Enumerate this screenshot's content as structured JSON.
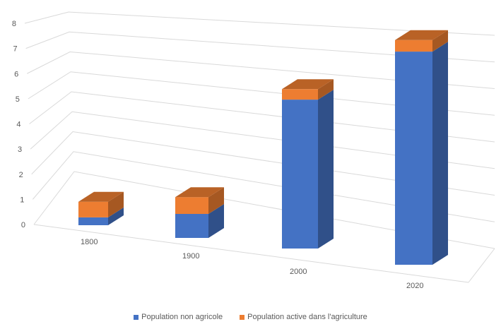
{
  "chart_data": {
    "type": "bar",
    "stacked": true,
    "three_d": true,
    "title": "",
    "xlabel": "",
    "ylabel": "",
    "categories": [
      "1800",
      "1900",
      "2000",
      "2020"
    ],
    "series": [
      {
        "name": "Population non agricole",
        "color": "#4472C4",
        "values": [
          0.3,
          1.0,
          5.7,
          7.4
        ]
      },
      {
        "name": "Population active dans l'agriculture",
        "color": "#ED7D31",
        "values": [
          0.6,
          0.7,
          0.4,
          0.4
        ]
      }
    ],
    "ylim": [
      0,
      8
    ],
    "yticks": [
      "0",
      "1",
      "2",
      "3",
      "4",
      "5",
      "6",
      "7",
      "8"
    ],
    "grid": true,
    "legend": "bottom"
  }
}
